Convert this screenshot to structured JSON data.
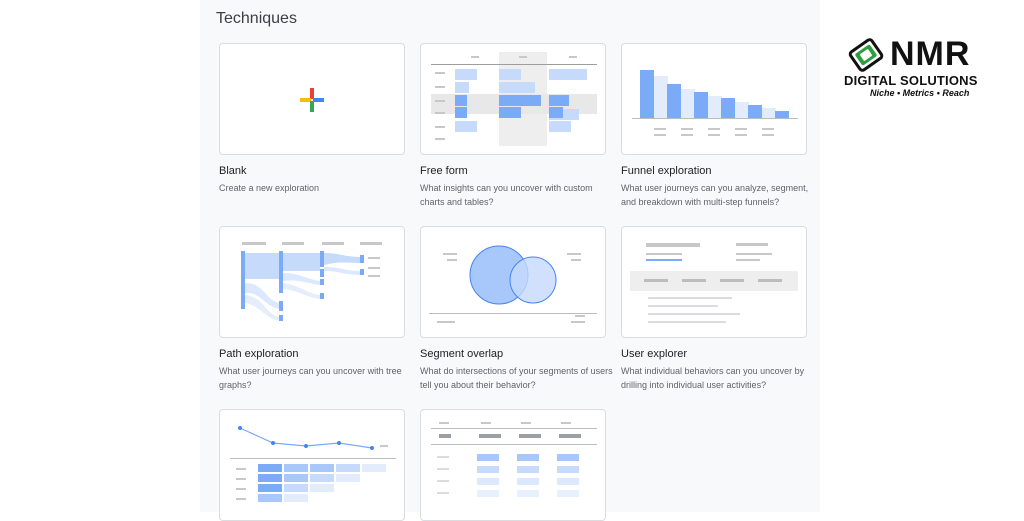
{
  "section": {
    "title": "Techniques"
  },
  "techniques": [
    {
      "title": "Blank",
      "description": "Create a new exploration"
    },
    {
      "title": "Free form",
      "description": "What insights can you uncover with custom charts and tables?"
    },
    {
      "title": "Funnel exploration",
      "description": "What user journeys can you analyze, segment, and breakdown with multi-step funnels?"
    },
    {
      "title": "Path exploration",
      "description": "What user journeys can you uncover with tree graphs?"
    },
    {
      "title": "Segment overlap",
      "description": "What do intersections of your segments of users tell you about their behavior?"
    },
    {
      "title": "User explorer",
      "description": "What individual behaviors can you uncover by drilling into individual user activities?"
    },
    {
      "title": "",
      "description": ""
    },
    {
      "title": "",
      "description": ""
    }
  ],
  "logo": {
    "name": "NMR",
    "subtitle": "DIGITAL SOLUTIONS",
    "tagline": "Niche • Metrics • Reach",
    "colors": {
      "green": "#2e9e3e",
      "dark": "#111111"
    }
  },
  "colors": {
    "accent_blue": "#7baaf7",
    "light_blue": "#c6dafc",
    "google_red": "#ea4335",
    "google_blue": "#4285f4",
    "google_green": "#34a853",
    "google_yellow": "#fbbc04"
  },
  "icons": [
    "plus-icon",
    "logo-mark-icon"
  ]
}
